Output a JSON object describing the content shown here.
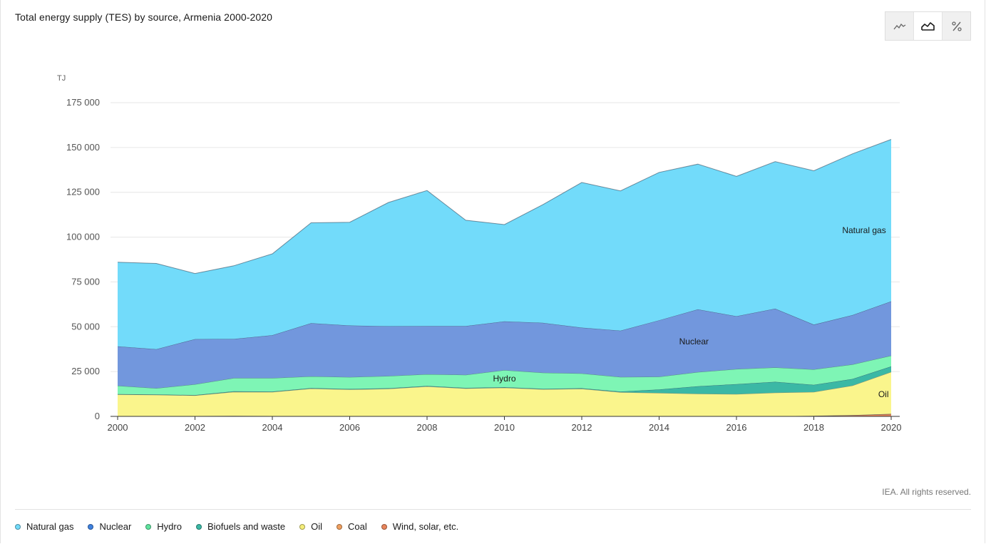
{
  "title": "Total energy supply (TES) by source, Armenia 2000-2020",
  "view_toggle": [
    {
      "name": "line-chart-icon",
      "active": false
    },
    {
      "name": "area-chart-icon",
      "active": true
    },
    {
      "name": "percent-icon",
      "active": false
    }
  ],
  "credit": "IEA. All rights reserved.",
  "chart_data": {
    "type": "area",
    "stacked": true,
    "unit_label": "TJ",
    "x": [
      2000,
      2001,
      2002,
      2003,
      2004,
      2005,
      2006,
      2007,
      2008,
      2009,
      2010,
      2011,
      2012,
      2013,
      2014,
      2015,
      2016,
      2017,
      2018,
      2019,
      2020
    ],
    "x_tick_labels": [
      "2000",
      "2002",
      "2004",
      "2006",
      "2008",
      "2010",
      "2012",
      "2014",
      "2016",
      "2018",
      "2020"
    ],
    "y_tick_labels": [
      "0",
      "25 000",
      "50 000",
      "75 000",
      "100 000",
      "125 000",
      "150 000",
      "175 000"
    ],
    "y_ticks": [
      0,
      25000,
      50000,
      75000,
      100000,
      125000,
      150000,
      175000
    ],
    "ylim": [
      0,
      175000
    ],
    "grid": true,
    "legend_position": "bottom",
    "series": [
      {
        "name": "Wind, solar, etc.",
        "color": "#e8855b",
        "values": [
          0,
          0,
          0,
          0,
          0,
          0,
          0,
          0,
          0,
          0,
          0,
          0,
          0,
          0,
          0,
          0,
          0,
          0,
          200,
          600,
          1300
        ]
      },
      {
        "name": "Coal",
        "color": "#f0a060",
        "values": [
          100,
          100,
          200,
          300,
          200,
          200,
          200,
          200,
          100,
          100,
          100,
          100,
          100,
          100,
          100,
          100,
          100,
          100,
          100,
          100,
          100
        ]
      },
      {
        "name": "Oil",
        "color": "#faf58c",
        "values": [
          12100,
          11900,
          11500,
          13400,
          13400,
          15300,
          14800,
          15200,
          16600,
          15500,
          15900,
          15000,
          15300,
          13400,
          13000,
          12500,
          12300,
          13100,
          13300,
          16500,
          23400
        ]
      },
      {
        "name": "Biofuels and waste",
        "color": "#3bb8a5",
        "values": [
          200,
          200,
          200,
          300,
          300,
          300,
          300,
          300,
          300,
          300,
          300,
          300,
          300,
          400,
          1900,
          4200,
          5600,
          6100,
          4000,
          3700,
          3100
        ]
      },
      {
        "name": "Hydro",
        "color": "#7ef5b5",
        "values": [
          4700,
          3500,
          6000,
          7400,
          7500,
          6500,
          6600,
          6800,
          6500,
          7300,
          9500,
          9000,
          8300,
          8100,
          7100,
          7900,
          8400,
          8000,
          8600,
          8100,
          6000
        ]
      },
      {
        "name": "Nuclear",
        "color": "#7297dd",
        "values": [
          22000,
          21800,
          25200,
          21800,
          23900,
          29700,
          28800,
          27800,
          26900,
          27200,
          27200,
          27800,
          25500,
          25800,
          31500,
          35000,
          29500,
          32800,
          25000,
          27500,
          30300
        ]
      },
      {
        "name": "Natural gas",
        "color": "#72dbfa",
        "values": [
          46900,
          47800,
          36600,
          40800,
          45400,
          56000,
          57600,
          69000,
          75600,
          59000,
          54000,
          66000,
          81000,
          78000,
          82500,
          81000,
          78000,
          82000,
          85800,
          90000,
          90300
        ]
      }
    ],
    "area_labels": [
      {
        "series": "Natural gas",
        "text": "Natural gas"
      },
      {
        "series": "Nuclear",
        "text": "Nuclear"
      },
      {
        "series": "Hydro",
        "text": "Hydro"
      },
      {
        "series": "Oil",
        "text": "Oil"
      }
    ]
  },
  "legend": [
    {
      "label": "Natural gas",
      "color": "#72dbfa"
    },
    {
      "label": "Nuclear",
      "color": "#3f82e0"
    },
    {
      "label": "Hydro",
      "color": "#5fe39e"
    },
    {
      "label": "Biofuels and waste",
      "color": "#3bb8a5"
    },
    {
      "label": "Oil",
      "color": "#f5ee7a"
    },
    {
      "label": "Coal",
      "color": "#f0a060"
    },
    {
      "label": "Wind, solar, etc.",
      "color": "#e8855b"
    }
  ]
}
